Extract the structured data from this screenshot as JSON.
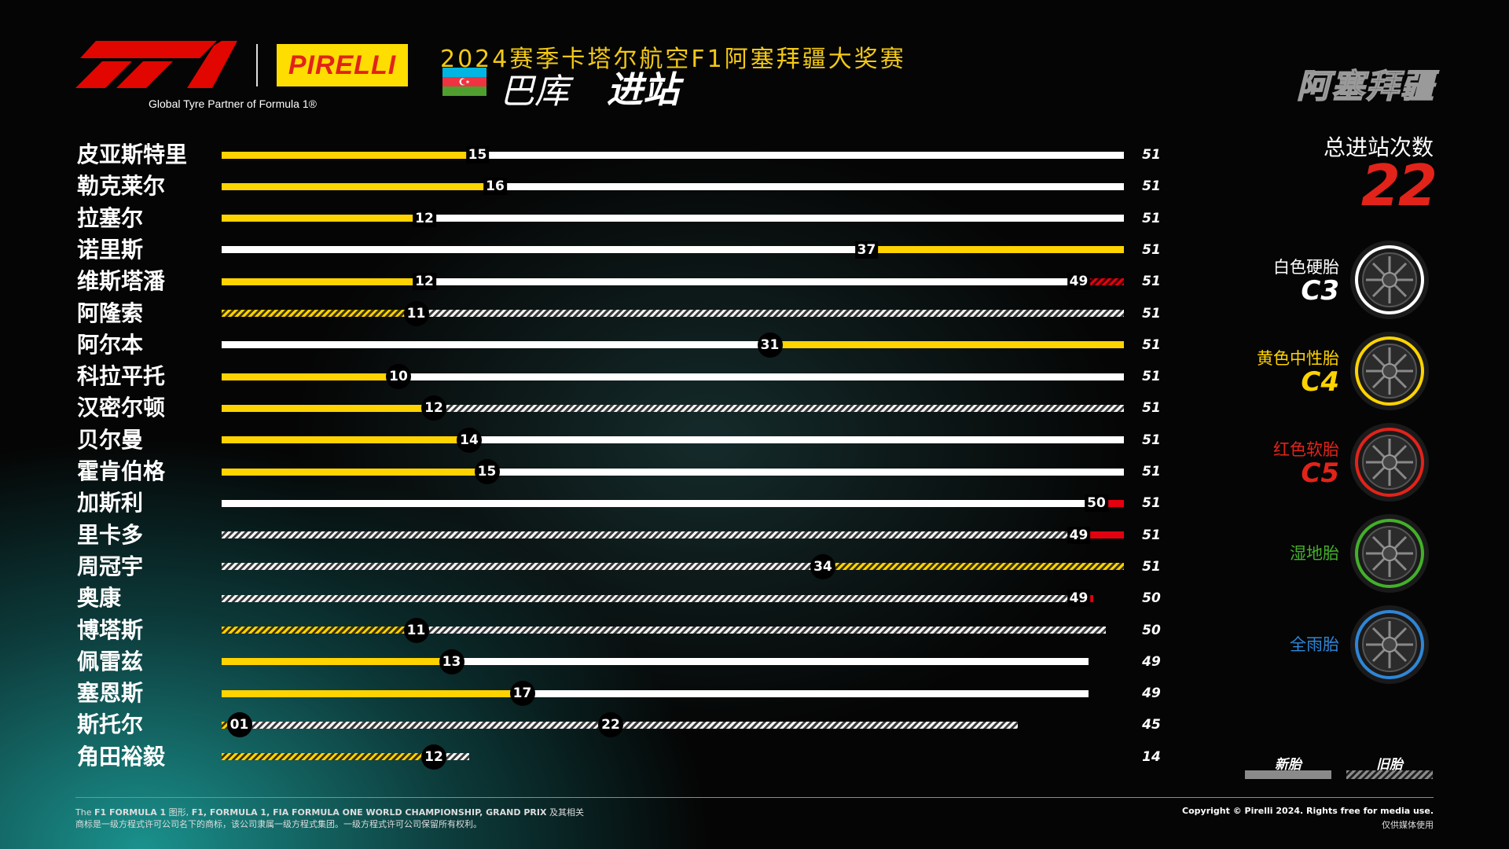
{
  "header": {
    "brand_partner_text": "Global Tyre Partner of Formula 1®",
    "pirelli_logo_text": "PIRELLI",
    "race_title": "2024赛季卡塔尔航空F1阿塞拜疆大奖赛",
    "city": "巴库",
    "section": "进站",
    "country_watermark": "阿塞拜疆",
    "f1_logo_text": "F1"
  },
  "summary": {
    "total_label": "总进站次数",
    "total_value": "22",
    "total_color": "#e2231a"
  },
  "legend": {
    "new_label": "新胎",
    "used_label": "旧胎",
    "tyres": [
      {
        "name": "白色硬胎",
        "code": "C3",
        "color": "#ffffff",
        "icon": "hard-tyre-icon"
      },
      {
        "name": "黄色中性胎",
        "code": "C4",
        "color": "#fed300",
        "icon": "medium-tyre-icon"
      },
      {
        "name": "红色软胎",
        "code": "C5",
        "color": "#e2231a",
        "icon": "soft-tyre-icon"
      },
      {
        "name": "湿地胎",
        "code": "",
        "color": "#43b02a",
        "icon": "intermediate-tyre-icon"
      },
      {
        "name": "全雨胎",
        "code": "",
        "color": "#0067ad",
        "icon": "wet-tyre-icon"
      }
    ]
  },
  "chart_data": {
    "type": "bar",
    "subtype": "tyre-strategy-stint-chart",
    "title": "进站",
    "x_unit": "laps",
    "race_laps": 51,
    "compound_colors": {
      "yellow": "#fed300",
      "white": "#ffffff",
      "red": "#e3000f"
    },
    "drivers": [
      {
        "name": "皮亚斯特里",
        "total": "51",
        "stints": [
          {
            "c": "yellow",
            "s": 0,
            "e": 15,
            "used": false
          },
          {
            "c": "white",
            "s": 15,
            "e": 51,
            "used": false
          }
        ],
        "stops": [
          {
            "lap": "15",
            "style": "plain"
          }
        ]
      },
      {
        "name": "勒克莱尔",
        "total": "51",
        "stints": [
          {
            "c": "yellow",
            "s": 0,
            "e": 16,
            "used": false
          },
          {
            "c": "white",
            "s": 16,
            "e": 51,
            "used": false
          }
        ],
        "stops": [
          {
            "lap": "16",
            "style": "plain"
          }
        ]
      },
      {
        "name": "拉塞尔",
        "total": "51",
        "stints": [
          {
            "c": "yellow",
            "s": 0,
            "e": 12,
            "used": false
          },
          {
            "c": "white",
            "s": 12,
            "e": 51,
            "used": false
          }
        ],
        "stops": [
          {
            "lap": "12",
            "style": "plain"
          }
        ]
      },
      {
        "name": "诺里斯",
        "total": "51",
        "stints": [
          {
            "c": "white",
            "s": 0,
            "e": 37,
            "used": false
          },
          {
            "c": "yellow",
            "s": 37,
            "e": 51,
            "used": false
          }
        ],
        "stops": [
          {
            "lap": "37",
            "style": "plain"
          }
        ]
      },
      {
        "name": "维斯塔潘",
        "total": "51",
        "stints": [
          {
            "c": "yellow",
            "s": 0,
            "e": 12,
            "used": false
          },
          {
            "c": "white",
            "s": 12,
            "e": 49,
            "used": false
          },
          {
            "c": "red",
            "s": 49,
            "e": 51,
            "used": true
          }
        ],
        "stops": [
          {
            "lap": "12",
            "style": "plain"
          },
          {
            "lap": "49",
            "style": "plain"
          }
        ]
      },
      {
        "name": "阿隆索",
        "total": "51",
        "stints": [
          {
            "c": "yellow",
            "s": 0,
            "e": 11,
            "used": true
          },
          {
            "c": "white",
            "s": 11,
            "e": 51,
            "used": true
          }
        ],
        "stops": [
          {
            "lap": "11",
            "style": "circle"
          }
        ]
      },
      {
        "name": "阿尔本",
        "total": "51",
        "stints": [
          {
            "c": "white",
            "s": 0,
            "e": 31,
            "used": false
          },
          {
            "c": "yellow",
            "s": 31,
            "e": 51,
            "used": false
          }
        ],
        "stops": [
          {
            "lap": "31",
            "style": "circle"
          }
        ]
      },
      {
        "name": "科拉平托",
        "total": "51",
        "stints": [
          {
            "c": "yellow",
            "s": 0,
            "e": 10,
            "used": false
          },
          {
            "c": "white",
            "s": 10,
            "e": 51,
            "used": false
          }
        ],
        "stops": [
          {
            "lap": "10",
            "style": "circle"
          }
        ]
      },
      {
        "name": "汉密尔顿",
        "total": "51",
        "stints": [
          {
            "c": "yellow",
            "s": 0,
            "e": 12,
            "used": false
          },
          {
            "c": "white",
            "s": 12,
            "e": 51,
            "used": true
          }
        ],
        "stops": [
          {
            "lap": "12",
            "style": "circle"
          }
        ]
      },
      {
        "name": "贝尔曼",
        "total": "51",
        "stints": [
          {
            "c": "yellow",
            "s": 0,
            "e": 14,
            "used": false
          },
          {
            "c": "white",
            "s": 14,
            "e": 51,
            "used": false
          }
        ],
        "stops": [
          {
            "lap": "14",
            "style": "circle"
          }
        ]
      },
      {
        "name": "霍肯伯格",
        "total": "51",
        "stints": [
          {
            "c": "yellow",
            "s": 0,
            "e": 15,
            "used": false
          },
          {
            "c": "white",
            "s": 15,
            "e": 51,
            "used": false
          }
        ],
        "stops": [
          {
            "lap": "15",
            "style": "circle"
          }
        ]
      },
      {
        "name": "加斯利",
        "total": "51",
        "stints": [
          {
            "c": "white",
            "s": 0,
            "e": 50,
            "used": false
          },
          {
            "c": "red",
            "s": 50,
            "e": 51,
            "used": false
          }
        ],
        "stops": [
          {
            "lap": "50",
            "style": "plain"
          }
        ]
      },
      {
        "name": "里卡多",
        "total": "51",
        "stints": [
          {
            "c": "white",
            "s": 0,
            "e": 49,
            "used": true
          },
          {
            "c": "red",
            "s": 49,
            "e": 51,
            "used": false
          }
        ],
        "stops": [
          {
            "lap": "49",
            "style": "plain"
          }
        ]
      },
      {
        "name": "周冠宇",
        "total": "51",
        "stints": [
          {
            "c": "white",
            "s": 0,
            "e": 34,
            "used": true
          },
          {
            "c": "yellow",
            "s": 34,
            "e": 51,
            "used": true
          }
        ],
        "stops": [
          {
            "lap": "34",
            "style": "circle"
          }
        ]
      },
      {
        "name": "奥康",
        "total": "50",
        "stints": [
          {
            "c": "white",
            "s": 0,
            "e": 49,
            "used": true
          },
          {
            "c": "red",
            "s": 49,
            "e": 49.3,
            "used": false
          }
        ],
        "stops": [
          {
            "lap": "49",
            "style": "plain"
          }
        ]
      },
      {
        "name": "博塔斯",
        "total": "50",
        "stints": [
          {
            "c": "yellow",
            "s": 0,
            "e": 11,
            "used": true
          },
          {
            "c": "white",
            "s": 11,
            "e": 50,
            "used": true
          }
        ],
        "stops": [
          {
            "lap": "11",
            "style": "circle"
          }
        ]
      },
      {
        "name": "佩雷兹",
        "total": "49",
        "stints": [
          {
            "c": "yellow",
            "s": 0,
            "e": 13,
            "used": false
          },
          {
            "c": "white",
            "s": 13,
            "e": 49,
            "used": false
          }
        ],
        "stops": [
          {
            "lap": "13",
            "style": "circle"
          }
        ]
      },
      {
        "name": "塞恩斯",
        "total": "49",
        "stints": [
          {
            "c": "yellow",
            "s": 0,
            "e": 17,
            "used": false
          },
          {
            "c": "white",
            "s": 17,
            "e": 49,
            "used": false
          }
        ],
        "stops": [
          {
            "lap": "17",
            "style": "circle"
          }
        ]
      },
      {
        "name": "斯托尔",
        "total": "45",
        "stints": [
          {
            "c": "yellow",
            "s": 0,
            "e": 1,
            "used": true
          },
          {
            "c": "white",
            "s": 1,
            "e": 45,
            "used": true
          }
        ],
        "stops": [
          {
            "lap": "01",
            "style": "circle"
          },
          {
            "lap": "22",
            "style": "circle"
          }
        ]
      },
      {
        "name": "角田裕毅",
        "total": "14",
        "stints": [
          {
            "c": "yellow",
            "s": 0,
            "e": 12,
            "used": true
          },
          {
            "c": "white",
            "s": 12,
            "e": 14,
            "used": true
          }
        ],
        "stops": [
          {
            "lap": "12",
            "style": "circle"
          }
        ]
      }
    ]
  },
  "footer": {
    "legal_en_pre": "The ",
    "legal_en_b1": "F1 FORMULA 1",
    "legal_en_mid1": " 图形, ",
    "legal_en_b2": "F1, FORMULA 1, FIA FORMULA ONE WORLD CHAMPIONSHIP, GRAND PRIX",
    "legal_en_post": " 及其相关",
    "legal_zh": "商标是一级方程式许可公司名下的商标，该公司隶属一级方程式集团。一级方程式许可公司保留所有权利。",
    "copyright": "Copyright © Pirelli 2024. Rights free for media use.",
    "media_note": "仅供媒体使用"
  }
}
